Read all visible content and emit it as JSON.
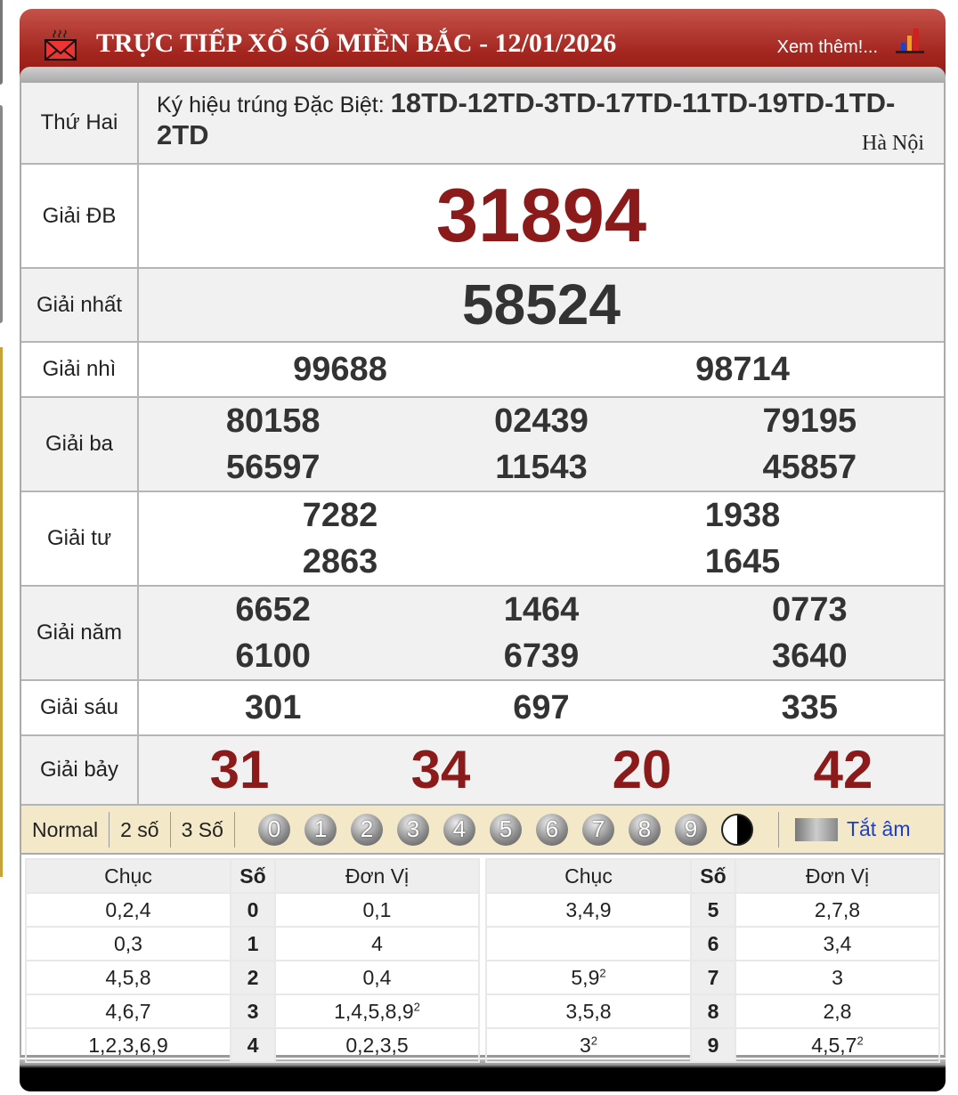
{
  "header": {
    "title": "TRỰC TIẾP XỔ SỐ MIỀN BẮC - 12/01/2026",
    "more_link": "Xem thêm!...",
    "icons": [
      "mail-icon",
      "bar-chart-icon"
    ]
  },
  "info": {
    "day": "Thứ Hai",
    "symbol_label": "Ký hiệu trúng Đặc Biệt:",
    "symbol_value": "18TD-12TD-3TD-17TD-11TD-19TD-1TD-2TD",
    "city": "Hà Nội"
  },
  "prizes": [
    {
      "label": "Giải ĐB",
      "numbers": [
        "31894"
      ]
    },
    {
      "label": "Giải nhất",
      "numbers": [
        "58524"
      ]
    },
    {
      "label": "Giải nhì",
      "numbers": [
        "99688",
        "98714"
      ]
    },
    {
      "label": "Giải ba",
      "numbers": [
        "80158",
        "02439",
        "79195",
        "56597",
        "11543",
        "45857"
      ]
    },
    {
      "label": "Giải tư",
      "numbers": [
        "7282",
        "1938",
        "2863",
        "1645"
      ]
    },
    {
      "label": "Giải năm",
      "numbers": [
        "6652",
        "1464",
        "0773",
        "6100",
        "6739",
        "3640"
      ]
    },
    {
      "label": "Giải sáu",
      "numbers": [
        "301",
        "697",
        "335"
      ]
    },
    {
      "label": "Giải bảy",
      "numbers": [
        "31",
        "34",
        "20",
        "42"
      ]
    }
  ],
  "controls": {
    "modes": [
      "Normal",
      "2 số",
      "3 Số"
    ],
    "digits": [
      "0",
      "1",
      "2",
      "3",
      "4",
      "5",
      "6",
      "7",
      "8",
      "9"
    ],
    "mute_label": "Tắt âm"
  },
  "loto": {
    "headers": [
      "Chục",
      "Số",
      "Đơn Vị"
    ],
    "rows": [
      {
        "chuc": "0,2,4",
        "chuc_sup": "",
        "so": "0",
        "dv": "0,1",
        "dv_sup": ""
      },
      {
        "chuc": "0,3",
        "chuc_sup": "",
        "so": "1",
        "dv": "4",
        "dv_sup": ""
      },
      {
        "chuc": "4,5,8",
        "chuc_sup": "",
        "so": "2",
        "dv": "0,4",
        "dv_sup": ""
      },
      {
        "chuc": "4,6,7",
        "chuc_sup": "",
        "so": "3",
        "dv": "1,4,5,8,9",
        "dv_sup": "2"
      },
      {
        "chuc": "1,2,3,6,9",
        "chuc_sup": "",
        "so": "4",
        "dv": "0,2,3,5",
        "dv_sup": ""
      },
      {
        "chuc": "3,4,9",
        "chuc_sup": "",
        "so": "5",
        "dv": "2,7,8",
        "dv_sup": ""
      },
      {
        "chuc": "",
        "chuc_sup": "",
        "so": "6",
        "dv": "3,4",
        "dv_sup": ""
      },
      {
        "chuc": "5,9",
        "chuc_sup": "2",
        "so": "7",
        "dv": "3",
        "dv_sup": ""
      },
      {
        "chuc": "3,5,8",
        "chuc_sup": "",
        "so": "8",
        "dv": "2,8",
        "dv_sup": ""
      },
      {
        "chuc": "3",
        "chuc_sup": "2",
        "so": "9",
        "dv": "4,5,7",
        "dv_sup": "2"
      }
    ]
  },
  "colors": {
    "header_red": "#a3261f",
    "special_red": "#8b1a1a",
    "control_bg": "#f3e8c8",
    "link_blue": "#1a3fd0"
  }
}
